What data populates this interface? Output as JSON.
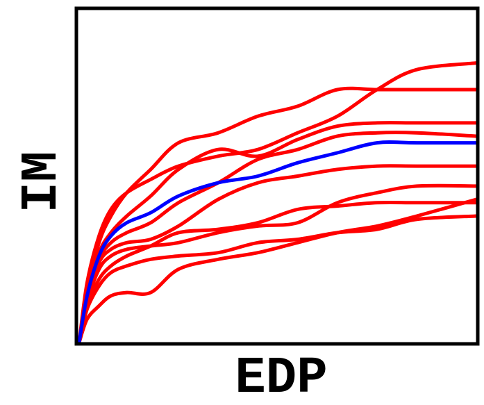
{
  "chart_data": {
    "type": "line",
    "title": "",
    "xlabel": "EDP",
    "ylabel": "IM",
    "grid": false,
    "xlim": [
      0,
      1
    ],
    "ylim": [
      0,
      1
    ],
    "colors": {
      "curves": "#ff0000",
      "median": "#0000ff",
      "frame": "#000000"
    },
    "series": [
      {
        "role": "curve",
        "x": [
          0,
          0.02,
          0.05,
          0.08,
          0.12,
          0.18,
          0.25,
          0.35,
          0.45,
          0.55,
          0.65,
          0.75,
          0.85,
          1.0
        ],
        "y": [
          0,
          0.18,
          0.32,
          0.4,
          0.45,
          0.49,
          0.53,
          0.56,
          0.58,
          0.63,
          0.68,
          0.76,
          0.82,
          0.84
        ]
      },
      {
        "role": "curve",
        "x": [
          0,
          0.02,
          0.05,
          0.08,
          0.12,
          0.18,
          0.25,
          0.35,
          0.45,
          0.55,
          0.65,
          0.75,
          0.85,
          1.0
        ],
        "y": [
          0,
          0.16,
          0.3,
          0.38,
          0.45,
          0.52,
          0.6,
          0.63,
          0.68,
          0.71,
          0.76,
          0.76,
          0.76,
          0.76
        ]
      },
      {
        "role": "curve",
        "x": [
          0,
          0.02,
          0.05,
          0.08,
          0.12,
          0.18,
          0.25,
          0.35,
          0.45,
          0.55,
          0.65,
          0.75,
          0.85,
          1.0
        ],
        "y": [
          0,
          0.15,
          0.27,
          0.33,
          0.38,
          0.44,
          0.52,
          0.58,
          0.56,
          0.61,
          0.65,
          0.66,
          0.66,
          0.66
        ]
      },
      {
        "role": "curve",
        "x": [
          0,
          0.02,
          0.05,
          0.08,
          0.12,
          0.18,
          0.25,
          0.35,
          0.45,
          0.55,
          0.65,
          0.75,
          0.85,
          1.0
        ],
        "y": [
          0,
          0.14,
          0.25,
          0.3,
          0.33,
          0.36,
          0.42,
          0.48,
          0.55,
          0.58,
          0.62,
          0.63,
          0.63,
          0.62
        ]
      },
      {
        "role": "curve",
        "x": [
          0,
          0.02,
          0.05,
          0.08,
          0.12,
          0.18,
          0.25,
          0.35,
          0.45,
          0.55,
          0.65,
          0.75,
          0.85,
          1.0
        ],
        "y": [
          0,
          0.13,
          0.24,
          0.28,
          0.3,
          0.31,
          0.35,
          0.43,
          0.48,
          0.5,
          0.52,
          0.53,
          0.53,
          0.53
        ]
      },
      {
        "role": "curve",
        "x": [
          0,
          0.02,
          0.05,
          0.08,
          0.12,
          0.18,
          0.25,
          0.35,
          0.45,
          0.55,
          0.65,
          0.75,
          0.85,
          1.0
        ],
        "y": [
          0,
          0.12,
          0.22,
          0.26,
          0.28,
          0.29,
          0.3,
          0.33,
          0.35,
          0.36,
          0.42,
          0.45,
          0.47,
          0.47
        ]
      },
      {
        "role": "curve",
        "x": [
          0,
          0.02,
          0.05,
          0.08,
          0.12,
          0.18,
          0.25,
          0.35,
          0.45,
          0.55,
          0.65,
          0.75,
          0.85,
          1.0
        ],
        "y": [
          0,
          0.11,
          0.19,
          0.23,
          0.26,
          0.29,
          0.33,
          0.34,
          0.36,
          0.4,
          0.41,
          0.42,
          0.42,
          0.42
        ]
      },
      {
        "role": "curve",
        "x": [
          0,
          0.02,
          0.05,
          0.08,
          0.12,
          0.18,
          0.25,
          0.35,
          0.45,
          0.55,
          0.65,
          0.75,
          0.85,
          1.0
        ],
        "y": [
          0,
          0.1,
          0.17,
          0.21,
          0.23,
          0.25,
          0.26,
          0.27,
          0.3,
          0.31,
          0.33,
          0.34,
          0.37,
          0.38
        ]
      },
      {
        "role": "curve",
        "x": [
          0,
          0.02,
          0.05,
          0.08,
          0.12,
          0.18,
          0.25,
          0.35,
          0.45,
          0.55,
          0.65,
          0.75,
          0.85,
          1.0
        ],
        "y": [
          0,
          0.07,
          0.11,
          0.14,
          0.15,
          0.15,
          0.22,
          0.25,
          0.27,
          0.3,
          0.33,
          0.35,
          0.38,
          0.43
        ]
      },
      {
        "role": "median",
        "x": [
          0,
          0.02,
          0.05,
          0.08,
          0.12,
          0.18,
          0.25,
          0.35,
          0.45,
          0.55,
          0.65,
          0.75,
          0.85,
          1.0
        ],
        "y": [
          0,
          0.14,
          0.26,
          0.32,
          0.36,
          0.39,
          0.44,
          0.48,
          0.5,
          0.54,
          0.57,
          0.6,
          0.6,
          0.6
        ]
      }
    ]
  }
}
